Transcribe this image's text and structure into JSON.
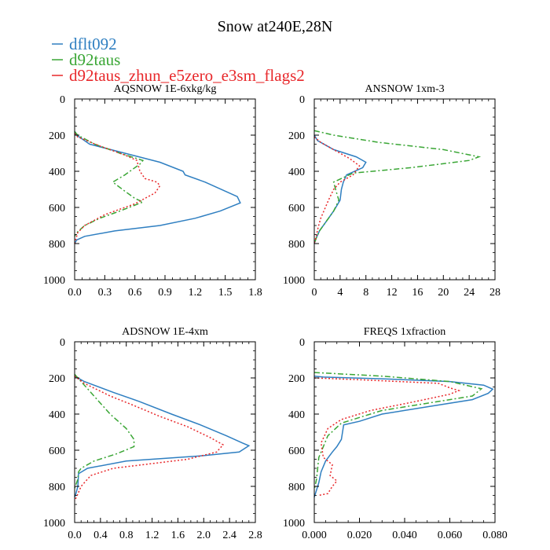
{
  "chart_data": {
    "type": "line",
    "title": "Snow at240E,28N",
    "legend": {
      "placement": "top-left",
      "entries": [
        {
          "name": "dflt092",
          "color": "#2f7fc1",
          "dash": "solid"
        },
        {
          "name": "d92taus",
          "color": "#3aa635",
          "dash": "dashdot"
        },
        {
          "name": "d92taus_zhun_e5zero_e3sm_flags2",
          "color": "#e8282b",
          "dash": "dotted"
        }
      ]
    },
    "panels": [
      {
        "title": "AQSNOW  1E-6xkg/kg",
        "xlim": [
          0,
          1.8
        ],
        "ylim": [
          1000,
          0
        ],
        "xticks": [
          0.0,
          0.3,
          0.6,
          0.9,
          1.2,
          1.5,
          1.8
        ],
        "xtick_labels": [
          "0.0",
          "0.3",
          "0.6",
          "0.9",
          "1.2",
          "1.5",
          "1.8"
        ],
        "yticks": [
          0,
          200,
          400,
          600,
          800,
          1000
        ],
        "ytick_labels": [
          "0",
          "200",
          "400",
          "600",
          "800",
          "1000"
        ],
        "series": [
          {
            "name": "dflt092",
            "points": [
              [
                0,
                180
              ],
              [
                0.02,
                200
              ],
              [
                0.15,
                250
              ],
              [
                0.5,
                300
              ],
              [
                0.85,
                350
              ],
              [
                1.08,
                400
              ],
              [
                1.1,
                420
              ],
              [
                1.3,
                460
              ],
              [
                1.62,
                540
              ],
              [
                1.65,
                575
              ],
              [
                1.45,
                620
              ],
              [
                1.2,
                660
              ],
              [
                0.85,
                700
              ],
              [
                0.4,
                730
              ],
              [
                0.1,
                760
              ],
              [
                0.02,
                780
              ],
              [
                0,
                800
              ]
            ]
          },
          {
            "name": "d92taus",
            "points": [
              [
                0,
                180
              ],
              [
                0.03,
                200
              ],
              [
                0.2,
                250
              ],
              [
                0.45,
                300
              ],
              [
                0.68,
                340
              ],
              [
                0.65,
                360
              ],
              [
                0.5,
                420
              ],
              [
                0.38,
                460
              ],
              [
                0.5,
                510
              ],
              [
                0.6,
                550
              ],
              [
                0.68,
                570
              ],
              [
                0.45,
                620
              ],
              [
                0.25,
                660
              ],
              [
                0.1,
                700
              ],
              [
                0.02,
                740
              ],
              [
                0,
                760
              ]
            ]
          },
          {
            "name": "d92taus_zhun_e5zero_e3sm_flags2",
            "points": [
              [
                0,
                190
              ],
              [
                0.03,
                210
              ],
              [
                0.25,
                260
              ],
              [
                0.5,
                310
              ],
              [
                0.62,
                340
              ],
              [
                0.65,
                400
              ],
              [
                0.7,
                440
              ],
              [
                0.82,
                460
              ],
              [
                0.85,
                480
              ],
              [
                0.8,
                520
              ],
              [
                0.6,
                580
              ],
              [
                0.3,
                640
              ],
              [
                0.1,
                700
              ],
              [
                0.03,
                740
              ],
              [
                0,
                800
              ]
            ]
          }
        ]
      },
      {
        "title": "ANSNOW  1xm-3",
        "xlim": [
          0,
          28
        ],
        "ylim": [
          1000,
          0
        ],
        "xticks": [
          0,
          4,
          8,
          12,
          16,
          20,
          24,
          28
        ],
        "xtick_labels": [
          "0",
          "4",
          "8",
          "12",
          "16",
          "20",
          "24",
          "28"
        ],
        "yticks": [
          0,
          200,
          400,
          600,
          800,
          1000
        ],
        "ytick_labels": [
          "0",
          "200",
          "400",
          "600",
          "800",
          "1000"
        ],
        "series": [
          {
            "name": "dflt092",
            "points": [
              [
                0,
                200
              ],
              [
                0.5,
                230
              ],
              [
                3,
                280
              ],
              [
                6.5,
                320
              ],
              [
                8,
                350
              ],
              [
                7.5,
                380
              ],
              [
                5,
                420
              ],
              [
                4.5,
                460
              ],
              [
                4.2,
                500
              ],
              [
                4,
                560
              ],
              [
                3,
                620
              ],
              [
                1.8,
                680
              ],
              [
                0.8,
                730
              ],
              [
                0.3,
                770
              ],
              [
                0,
                800
              ]
            ]
          },
          {
            "name": "d92taus",
            "points": [
              [
                0,
                175
              ],
              [
                3,
                200
              ],
              [
                10,
                240
              ],
              [
                20,
                280
              ],
              [
                25.5,
                320
              ],
              [
                24,
                340
              ],
              [
                15,
                380
              ],
              [
                6,
                410
              ],
              [
                3,
                460
              ],
              [
                3.3,
                500
              ],
              [
                3.8,
                560
              ],
              [
                3,
                620
              ],
              [
                1.8,
                680
              ],
              [
                0.8,
                730
              ],
              [
                0.3,
                770
              ],
              [
                0,
                800
              ]
            ]
          },
          {
            "name": "d92taus_zhun_e5zero_e3sm_flags2",
            "points": [
              [
                0,
                210
              ],
              [
                1,
                240
              ],
              [
                3,
                280
              ],
              [
                5.5,
                330
              ],
              [
                7,
                370
              ],
              [
                6,
                420
              ],
              [
                4,
                460
              ],
              [
                3,
                500
              ],
              [
                2.2,
                560
              ],
              [
                1.6,
                610
              ],
              [
                1,
                660
              ],
              [
                0.6,
                710
              ],
              [
                0.3,
                760
              ],
              [
                0,
                800
              ]
            ]
          }
        ]
      },
      {
        "title": "ADSNOW  1E-4xm",
        "xlim": [
          0,
          2.8
        ],
        "ylim": [
          1000,
          0
        ],
        "xticks": [
          0.0,
          0.4,
          0.8,
          1.2,
          1.6,
          2.0,
          2.4,
          2.8
        ],
        "xtick_labels": [
          "0.0",
          "0.4",
          "0.8",
          "1.2",
          "1.6",
          "2.0",
          "2.4",
          "2.8"
        ],
        "yticks": [
          0,
          200,
          400,
          600,
          800,
          1000
        ],
        "ytick_labels": [
          "0",
          "200",
          "400",
          "600",
          "800",
          "1000"
        ],
        "series": [
          {
            "name": "dflt092",
            "points": [
              [
                0,
                190
              ],
              [
                0.15,
                220
              ],
              [
                0.6,
                280
              ],
              [
                1.0,
                330
              ],
              [
                1.5,
                400
              ],
              [
                1.95,
                460
              ],
              [
                2.35,
                520
              ],
              [
                2.6,
                560
              ],
              [
                2.7,
                575
              ],
              [
                2.55,
                610
              ],
              [
                2.0,
                630
              ],
              [
                0.8,
                660
              ],
              [
                0.2,
                700
              ],
              [
                0.06,
                730
              ],
              [
                0.05,
                800
              ],
              [
                0.02,
                840
              ],
              [
                0,
                860
              ]
            ]
          },
          {
            "name": "d92taus",
            "points": [
              [
                0,
                180
              ],
              [
                0.1,
                220
              ],
              [
                0.3,
                300
              ],
              [
                0.55,
                400
              ],
              [
                0.8,
                480
              ],
              [
                0.92,
                540
              ],
              [
                0.92,
                580
              ],
              [
                0.65,
                620
              ],
              [
                0.3,
                660
              ],
              [
                0.1,
                700
              ],
              [
                0.06,
                720
              ],
              [
                0.05,
                760
              ],
              [
                0.02,
                790
              ],
              [
                0,
                810
              ]
            ]
          },
          {
            "name": "d92taus_zhun_e5zero_e3sm_flags2",
            "points": [
              [
                0,
                190
              ],
              [
                0.15,
                230
              ],
              [
                0.55,
                300
              ],
              [
                0.9,
                350
              ],
              [
                1.3,
                410
              ],
              [
                1.75,
                470
              ],
              [
                2.1,
                530
              ],
              [
                2.3,
                570
              ],
              [
                2.2,
                610
              ],
              [
                1.75,
                650
              ],
              [
                0.6,
                700
              ],
              [
                0.25,
                740
              ],
              [
                0.1,
                800
              ],
              [
                0.04,
                850
              ],
              [
                0,
                880
              ]
            ]
          }
        ]
      },
      {
        "title": "FREQS  1xfraction",
        "xlim": [
          0,
          0.08
        ],
        "ylim": [
          1000,
          0
        ],
        "xticks": [
          0.0,
          0.02,
          0.04,
          0.06,
          0.08
        ],
        "xtick_labels": [
          "0.000",
          "0.020",
          "0.040",
          "0.060",
          "0.080"
        ],
        "yticks": [
          0,
          200,
          400,
          600,
          800,
          1000
        ],
        "ytick_labels": [
          "0",
          "200",
          "400",
          "600",
          "800",
          "1000"
        ],
        "series": [
          {
            "name": "dflt092",
            "points": [
              [
                0,
                190
              ],
              [
                0.004,
                195
              ],
              [
                0.03,
                205
              ],
              [
                0.06,
                220
              ],
              [
                0.075,
                240
              ],
              [
                0.079,
                262
              ],
              [
                0.077,
                285
              ],
              [
                0.07,
                320
              ],
              [
                0.05,
                360
              ],
              [
                0.03,
                400
              ],
              [
                0.02,
                440
              ],
              [
                0.013,
                460
              ],
              [
                0.012,
                540
              ],
              [
                0.01,
                580
              ],
              [
                0.008,
                610
              ],
              [
                0.005,
                660
              ],
              [
                0.003,
                720
              ],
              [
                0.002,
                780
              ],
              [
                0.001,
                820
              ],
              [
                0,
                860
              ]
            ]
          },
          {
            "name": "d92taus",
            "points": [
              [
                0,
                170
              ],
              [
                0.03,
                190
              ],
              [
                0.06,
                220
              ],
              [
                0.074,
                260
              ],
              [
                0.07,
                300
              ],
              [
                0.05,
                340
              ],
              [
                0.03,
                380
              ],
              [
                0.012,
                450
              ],
              [
                0.006,
                520
              ],
              [
                0.004,
                580
              ],
              [
                0.002,
                640
              ],
              [
                0.0015,
                700
              ],
              [
                0.001,
                760
              ],
              [
                0,
                820
              ]
            ]
          },
          {
            "name": "d92taus_zhun_e5zero_e3sm_flags2",
            "points": [
              [
                0,
                200
              ],
              [
                0.02,
                210
              ],
              [
                0.055,
                230
              ],
              [
                0.06,
                255
              ],
              [
                0.064,
                270
              ],
              [
                0.06,
                290
              ],
              [
                0.045,
                330
              ],
              [
                0.025,
                380
              ],
              [
                0.012,
                430
              ],
              [
                0.006,
                480
              ],
              [
                0.003,
                560
              ],
              [
                0.004,
                640
              ],
              [
                0.008,
                680
              ],
              [
                0.007,
                740
              ],
              [
                0.01,
                770
              ],
              [
                0.008,
                800
              ],
              [
                0.006,
                840
              ],
              [
                0.002,
                850
              ]
            ]
          }
        ]
      }
    ]
  }
}
